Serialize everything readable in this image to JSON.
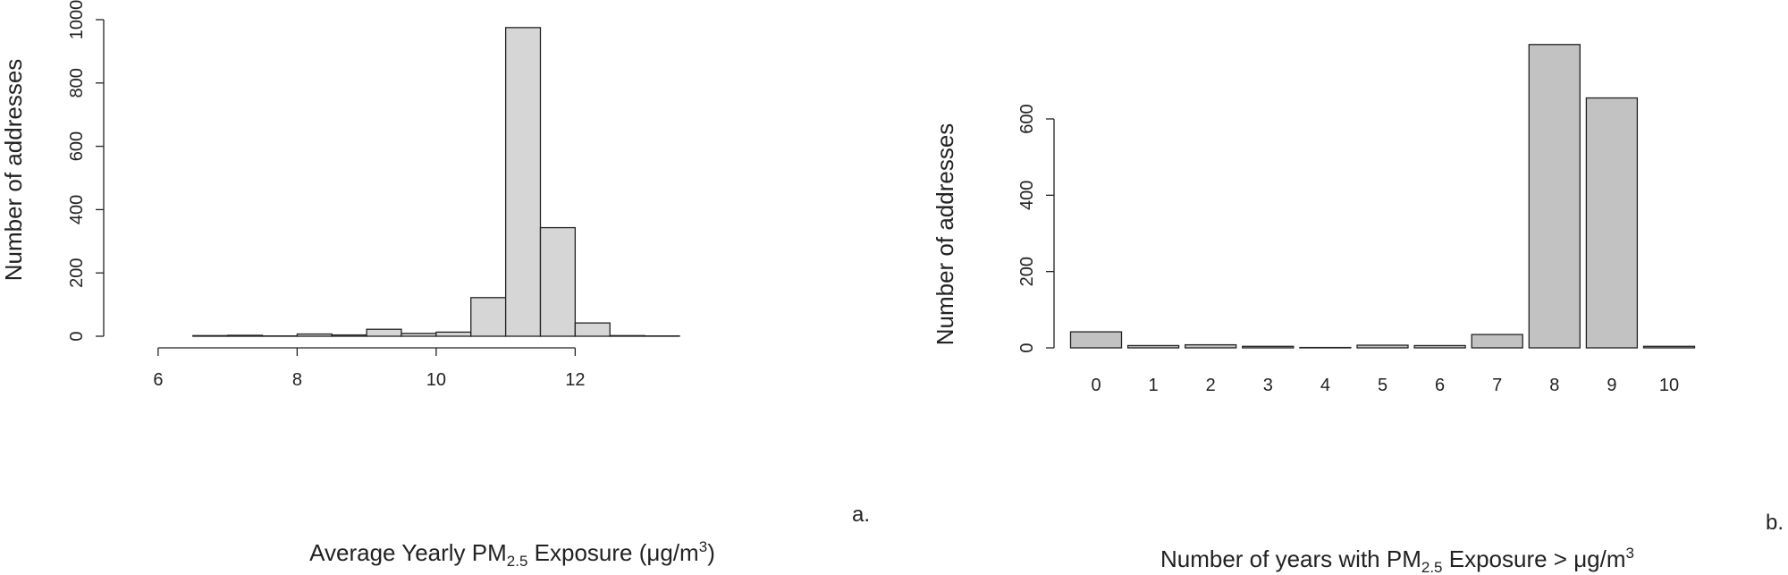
{
  "chart_data": [
    {
      "panel": "a.",
      "type": "bar",
      "subtype": "histogram",
      "bar_color": "#d6d6d6",
      "edge_color": "#222222",
      "xlabel_parts": {
        "pre": "Average Yearly PM",
        "sub": "2.5",
        "post": " Exposure (μg/m",
        "sup": "3",
        "end": ")"
      },
      "ylabel": "Number of addresses",
      "x_ticks": [
        6,
        8,
        10,
        12
      ],
      "y_ticks": [
        0,
        200,
        400,
        600,
        800,
        1000
      ],
      "xlim": [
        5.5,
        13.5
      ],
      "ylim": [
        0,
        1000
      ],
      "bins": [
        {
          "x0": 5.5,
          "x1": 6.0,
          "count": 0
        },
        {
          "x0": 6.0,
          "x1": 6.5,
          "count": 0
        },
        {
          "x0": 6.5,
          "x1": 7.0,
          "count": 2
        },
        {
          "x0": 7.0,
          "x1": 7.5,
          "count": 3
        },
        {
          "x0": 7.5,
          "x1": 8.0,
          "count": 1
        },
        {
          "x0": 8.0,
          "x1": 8.5,
          "count": 7
        },
        {
          "x0": 8.5,
          "x1": 9.0,
          "count": 4
        },
        {
          "x0": 9.0,
          "x1": 9.5,
          "count": 22
        },
        {
          "x0": 9.5,
          "x1": 10.0,
          "count": 9
        },
        {
          "x0": 10.0,
          "x1": 10.5,
          "count": 13
        },
        {
          "x0": 10.5,
          "x1": 11.0,
          "count": 122
        },
        {
          "x0": 11.0,
          "x1": 11.5,
          "count": 975
        },
        {
          "x0": 11.5,
          "x1": 12.0,
          "count": 343
        },
        {
          "x0": 12.0,
          "x1": 12.5,
          "count": 42
        },
        {
          "x0": 12.5,
          "x1": 13.0,
          "count": 2
        },
        {
          "x0": 13.0,
          "x1": 13.5,
          "count": 1
        }
      ]
    },
    {
      "panel": "b.",
      "type": "bar",
      "bar_color": "#c2c2c2",
      "edge_color": "#222222",
      "xlabel_parts": {
        "pre": "Number of years with PM",
        "sub": "2.5",
        "post": " Exposure > μg/m",
        "sup": "3",
        "end": ""
      },
      "ylabel": "Number of addresses",
      "categories": [
        "0",
        "1",
        "2",
        "3",
        "4",
        "5",
        "6",
        "7",
        "8",
        "9",
        "10"
      ],
      "values": [
        42,
        6,
        8,
        4,
        1,
        7,
        6,
        35,
        795,
        655,
        4
      ],
      "y_ticks": [
        0,
        200,
        400,
        600
      ],
      "ylim": [
        0,
        800
      ]
    }
  ]
}
